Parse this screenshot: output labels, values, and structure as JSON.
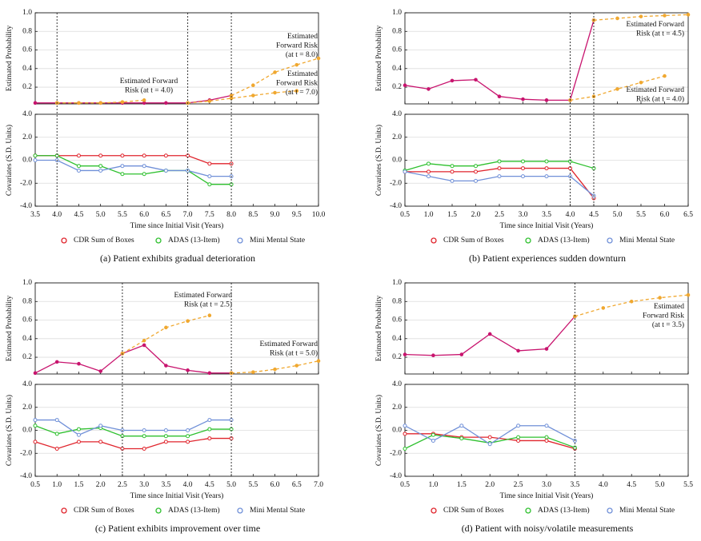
{
  "chart_data": [
    {
      "type": "line",
      "caption": "(a) Patient exhibits gradual deterioration",
      "xlabel": "Time since Initial Visit (Years)",
      "xlim": [
        3.5,
        10
      ],
      "xticks": [
        3.5,
        {
          "value": 4,
          "label": "4.0"
        },
        4.5,
        {
          "value": 5,
          "label": "5.0"
        },
        5.5,
        {
          "value": 6,
          "label": "6.0"
        },
        6.5,
        {
          "value": 7,
          "label": "7.0"
        },
        7.5,
        {
          "value": 8,
          "label": "8.0"
        },
        8.5,
        {
          "value": 9,
          "label": "9.0"
        },
        9.5,
        {
          "value": 10,
          "label": "10.0"
        }
      ],
      "vlines": [
        4,
        7,
        8
      ],
      "grid": true,
      "top": {
        "ylabel": "Estimated Probability",
        "ylim": [
          0.02,
          1
        ],
        "yticks": [
          0.2,
          0.4,
          0.6,
          0.8,
          {
            "value": 1,
            "label": "1.0"
          }
        ],
        "series": [
          {
            "color": "#c8146e",
            "line_style": "solid",
            "x": [
              3.5,
              4,
              4.5,
              5,
              5.5,
              6,
              6.5,
              7,
              7.5,
              8
            ],
            "values": [
              0.03,
              0.03,
              0.03,
              0.03,
              0.03,
              0.03,
              0.03,
              0.03,
              0.06,
              0.11
            ]
          },
          {
            "color": "#f0a830",
            "line_style": "dashed",
            "x": [
              4,
              4.5,
              5,
              5.5,
              6
            ],
            "values": [
              0.03,
              0.03,
              0.03,
              0.04,
              0.06
            ]
          },
          {
            "color": "#f0a830",
            "line_style": "dashed",
            "x": [
              8,
              8.5,
              9,
              9.5,
              10
            ],
            "values": [
              0.11,
              0.22,
              0.36,
              0.44,
              0.51
            ]
          },
          {
            "color": "#f0a830",
            "line_style": "dashed",
            "x": [
              7,
              7.5,
              8,
              8.5,
              9,
              9.5
            ],
            "values": [
              0.03,
              0.05,
              0.08,
              0.11,
              0.14,
              0.16
            ]
          }
        ],
        "annotations": [
          {
            "lines": [
              "Estimated Forward",
              "Risk (at t = 4.0)"
            ]
          },
          {
            "lines": [
              "Estimated",
              "Forward Risk",
              "(at t = 8.0)"
            ]
          },
          {
            "lines": [
              "Estimated",
              "Forward Risk",
              "(at t = 7.0)"
            ]
          }
        ]
      },
      "bottom": {
        "ylabel": "Covariates (S.D. Units)",
        "ylim": [
          -4,
          4
        ],
        "yticks": [
          {
            "value": 4,
            "label": "4.0"
          },
          {
            "value": 2,
            "label": "2.0"
          },
          {
            "value": 0,
            "label": "0.0"
          },
          {
            "value": -2,
            "label": "-2.0"
          },
          {
            "value": -4,
            "label": "-4.0"
          }
        ],
        "series": [
          {
            "name": "CDR Sum of Boxes",
            "color": "#e0242c",
            "x": [
              3.5,
              4,
              4.5,
              5,
              5.5,
              6,
              6.5,
              7,
              7.5,
              8
            ],
            "values": [
              0.4,
              0.4,
              0.4,
              0.4,
              0.4,
              0.4,
              0.4,
              0.4,
              -0.3,
              -0.3
            ]
          },
          {
            "name": "ADAS (13-Item)",
            "color": "#2ec02e",
            "x": [
              3.5,
              4,
              4.5,
              5,
              5.5,
              6,
              6.5,
              7,
              7.5,
              8
            ],
            "values": [
              0.4,
              0.4,
              -0.5,
              -0.5,
              -1.2,
              -1.2,
              -0.9,
              -0.9,
              -2.1,
              -2.1
            ]
          },
          {
            "name": "Mini Mental State",
            "color": "#7090d8",
            "x": [
              3.5,
              4,
              4.5,
              5,
              5.5,
              6,
              6.5,
              7,
              7.5,
              8
            ],
            "values": [
              0,
              0,
              -0.9,
              -0.9,
              -0.5,
              -0.5,
              -0.9,
              -0.9,
              -1.4,
              -1.4
            ]
          }
        ]
      }
    },
    {
      "type": "line",
      "caption": "(b) Patient experiences sudden downturn",
      "xlabel": "Time since Initial Visit (Years)",
      "xlim": [
        0.5,
        6.5
      ],
      "xticks": [
        0.5,
        {
          "value": 1,
          "label": "1.0"
        },
        1.5,
        {
          "value": 2,
          "label": "2.0"
        },
        2.5,
        {
          "value": 3,
          "label": "3.0"
        },
        3.5,
        {
          "value": 4,
          "label": "4.0"
        },
        4.5,
        {
          "value": 5,
          "label": "5.0"
        },
        5.5,
        {
          "value": 6,
          "label": "6.0"
        },
        6.5
      ],
      "vlines": [
        4,
        4.5
      ],
      "grid": true,
      "top": {
        "ylabel": "Estimated Probability",
        "ylim": [
          0.02,
          1
        ],
        "yticks": [
          0.2,
          0.4,
          0.6,
          0.8,
          {
            "value": 1,
            "label": "1.0"
          }
        ],
        "series": [
          {
            "color": "#c8146e",
            "line_style": "solid",
            "x": [
              0.5,
              1,
              1.5,
              2,
              2.5,
              3,
              3.5,
              4,
              4.5
            ],
            "values": [
              0.22,
              0.18,
              0.27,
              0.28,
              0.1,
              0.07,
              0.06,
              0.06,
              0.92
            ]
          },
          {
            "color": "#f0a830",
            "line_style": "dashed",
            "x": [
              4.5,
              5,
              5.5,
              6,
              6.5
            ],
            "values": [
              0.92,
              0.94,
              0.96,
              0.97,
              0.98
            ]
          },
          {
            "color": "#f0a830",
            "line_style": "dashed",
            "x": [
              4,
              4.5,
              5,
              5.5,
              6
            ],
            "values": [
              0.06,
              0.1,
              0.18,
              0.25,
              0.32
            ]
          }
        ],
        "annotations": [
          {
            "lines": [
              "Estimated Forward",
              "Risk (at t = 4.5)"
            ]
          },
          {
            "lines": [
              "Estimated Forward",
              "Risk (at t = 4.0)"
            ]
          }
        ]
      },
      "bottom": {
        "ylabel": "Covariates (S.D. Units)",
        "ylim": [
          -4,
          4
        ],
        "yticks": [
          {
            "value": 4,
            "label": "4.0"
          },
          {
            "value": 2,
            "label": "2.0"
          },
          {
            "value": 0,
            "label": "0.0"
          },
          {
            "value": -2,
            "label": "-2.0"
          },
          {
            "value": -4,
            "label": "-4.0"
          }
        ],
        "series": [
          {
            "name": "CDR Sum of Boxes",
            "color": "#e0242c",
            "x": [
              0.5,
              1,
              1.5,
              2,
              2.5,
              3,
              3.5,
              4,
              4.5
            ],
            "values": [
              -1,
              -1,
              -1,
              -1,
              -0.7,
              -0.7,
              -0.7,
              -0.7,
              -3.3
            ]
          },
          {
            "name": "ADAS (13-Item)",
            "color": "#2ec02e",
            "x": [
              0.5,
              1,
              1.5,
              2,
              2.5,
              3,
              3.5,
              4,
              4.5
            ],
            "values": [
              -0.9,
              -0.3,
              -0.5,
              -0.5,
              -0.1,
              -0.1,
              -0.1,
              -0.1,
              -0.7
            ]
          },
          {
            "name": "Mini Mental State",
            "color": "#7090d8",
            "x": [
              0.5,
              1,
              1.5,
              2,
              2.5,
              3,
              3.5,
              4,
              4.5
            ],
            "values": [
              -1,
              -1.4,
              -1.8,
              -1.8,
              -1.4,
              -1.4,
              -1.4,
              -1.4,
              -3.1
            ]
          }
        ]
      }
    },
    {
      "type": "line",
      "caption": "(c) Patient exhibits improvement over time",
      "xlabel": "Time since Initial Visit (Years)",
      "xlim": [
        0.5,
        7
      ],
      "xticks": [
        0.5,
        {
          "value": 1,
          "label": "1.0"
        },
        1.5,
        {
          "value": 2,
          "label": "2.0"
        },
        2.5,
        {
          "value": 3,
          "label": "3.0"
        },
        3.5,
        {
          "value": 4,
          "label": "4.0"
        },
        4.5,
        {
          "value": 5,
          "label": "5.0"
        },
        5.5,
        {
          "value": 6,
          "label": "6.0"
        },
        6.5,
        {
          "value": 7,
          "label": "7.0"
        }
      ],
      "vlines": [
        2.5,
        5
      ],
      "grid": true,
      "top": {
        "ylabel": "Estimated Probability",
        "ylim": [
          0.02,
          1
        ],
        "yticks": [
          0.2,
          0.4,
          0.6,
          0.8,
          {
            "value": 1,
            "label": "1.0"
          }
        ],
        "series": [
          {
            "color": "#c8146e",
            "line_style": "solid",
            "x": [
              0.5,
              1,
              1.5,
              2,
              2.5,
              3,
              3.5,
              4,
              4.5,
              5
            ],
            "values": [
              0.03,
              0.15,
              0.13,
              0.05,
              0.24,
              0.33,
              0.11,
              0.06,
              0.03,
              0.03
            ]
          },
          {
            "color": "#f0a830",
            "line_style": "dashed",
            "x": [
              2.5,
              3,
              3.5,
              4,
              4.5
            ],
            "values": [
              0.24,
              0.38,
              0.52,
              0.59,
              0.65
            ]
          },
          {
            "color": "#f0a830",
            "line_style": "dashed",
            "x": [
              5,
              5.5,
              6,
              6.5,
              7
            ],
            "values": [
              0.03,
              0.04,
              0.07,
              0.11,
              0.16
            ]
          }
        ],
        "annotations": [
          {
            "lines": [
              "Estimated Forward",
              "Risk (at t = 2.5)"
            ]
          },
          {
            "lines": [
              "Estimated Forward",
              "Risk (at t = 5.0)"
            ]
          }
        ]
      },
      "bottom": {
        "ylabel": "Covariates (S.D. Units)",
        "ylim": [
          -4,
          4
        ],
        "yticks": [
          {
            "value": 4,
            "label": "4.0"
          },
          {
            "value": 2,
            "label": "2.0"
          },
          {
            "value": 0,
            "label": "0.0"
          },
          {
            "value": -2,
            "label": "-2.0"
          },
          {
            "value": -4,
            "label": "-4.0"
          }
        ],
        "series": [
          {
            "name": "CDR Sum of Boxes",
            "color": "#e0242c",
            "x": [
              0.5,
              1,
              1.5,
              2,
              2.5,
              3,
              3.5,
              4,
              4.5,
              5
            ],
            "values": [
              -1,
              -1.6,
              -1,
              -1,
              -1.6,
              -1.6,
              -1,
              -1,
              -0.7,
              -0.7
            ]
          },
          {
            "name": "ADAS (13-Item)",
            "color": "#2ec02e",
            "x": [
              0.5,
              1,
              1.5,
              2,
              2.5,
              3,
              3.5,
              4,
              4.5,
              5
            ],
            "values": [
              0.4,
              -0.3,
              0.1,
              0.2,
              -0.5,
              -0.5,
              -0.5,
              -0.5,
              0.1,
              0.1
            ]
          },
          {
            "name": "Mini Mental State",
            "color": "#7090d8",
            "x": [
              0.5,
              1,
              1.5,
              2,
              2.5,
              3,
              3.5,
              4,
              4.5,
              5
            ],
            "values": [
              0.9,
              0.9,
              -0.4,
              0.4,
              0,
              0,
              0,
              0,
              0.9,
              0.9
            ]
          }
        ]
      }
    },
    {
      "type": "line",
      "caption": "(d) Patient with noisy/volatile measurements",
      "xlabel": "Time since Initial Visit (Years)",
      "xlim": [
        0.5,
        5.5
      ],
      "xticks": [
        0.5,
        {
          "value": 1,
          "label": "1.0"
        },
        1.5,
        {
          "value": 2,
          "label": "2.0"
        },
        2.5,
        {
          "value": 3,
          "label": "3.0"
        },
        3.5,
        {
          "value": 4,
          "label": "4.0"
        },
        4.5,
        {
          "value": 5,
          "label": "5.0"
        },
        5.5
      ],
      "vlines": [
        3.5
      ],
      "grid": true,
      "top": {
        "ylabel": "Estimated Probability",
        "ylim": [
          0.02,
          1
        ],
        "yticks": [
          0.2,
          0.4,
          0.6,
          0.8,
          {
            "value": 1,
            "label": "1.0"
          }
        ],
        "series": [
          {
            "color": "#c8146e",
            "line_style": "solid",
            "x": [
              0.5,
              1,
              1.5,
              2,
              2.5,
              3,
              3.5
            ],
            "values": [
              0.23,
              0.22,
              0.23,
              0.45,
              0.27,
              0.29,
              0.64
            ]
          },
          {
            "color": "#f0a830",
            "line_style": "dashed",
            "x": [
              3.5,
              4,
              4.5,
              5,
              5.5
            ],
            "values": [
              0.64,
              0.73,
              0.8,
              0.84,
              0.87
            ]
          }
        ],
        "annotations": [
          {
            "lines": [
              "Estimated",
              "Forward Risk",
              "(at t = 3.5)"
            ]
          }
        ]
      },
      "bottom": {
        "ylabel": "Covariates (S.D. Units)",
        "ylim": [
          -4,
          4
        ],
        "yticks": [
          {
            "value": 4,
            "label": "4.0"
          },
          {
            "value": 2,
            "label": "2.0"
          },
          {
            "value": 0,
            "label": "0.0"
          },
          {
            "value": -2,
            "label": "-2.0"
          },
          {
            "value": -4,
            "label": "-4.0"
          }
        ],
        "series": [
          {
            "name": "CDR Sum of Boxes",
            "color": "#e0242c",
            "x": [
              0.5,
              1,
              1.5,
              2,
              2.5,
              3,
              3.5
            ],
            "values": [
              -0.3,
              -0.3,
              -0.6,
              -0.6,
              -0.9,
              -0.9,
              -1.6
            ]
          },
          {
            "name": "ADAS (13-Item)",
            "color": "#2ec02e",
            "x": [
              0.5,
              1,
              1.5,
              2,
              2.5,
              3,
              3.5
            ],
            "values": [
              -1.6,
              -0.4,
              -0.7,
              -1.1,
              -0.6,
              -0.6,
              -1.5
            ]
          },
          {
            "name": "Mini Mental State",
            "color": "#7090d8",
            "x": [
              0.5,
              1,
              1.5,
              2,
              2.5,
              3,
              3.5
            ],
            "values": [
              0.4,
              -0.9,
              0.4,
              -1.2,
              0.4,
              0.4,
              -0.9
            ]
          }
        ]
      }
    }
  ]
}
